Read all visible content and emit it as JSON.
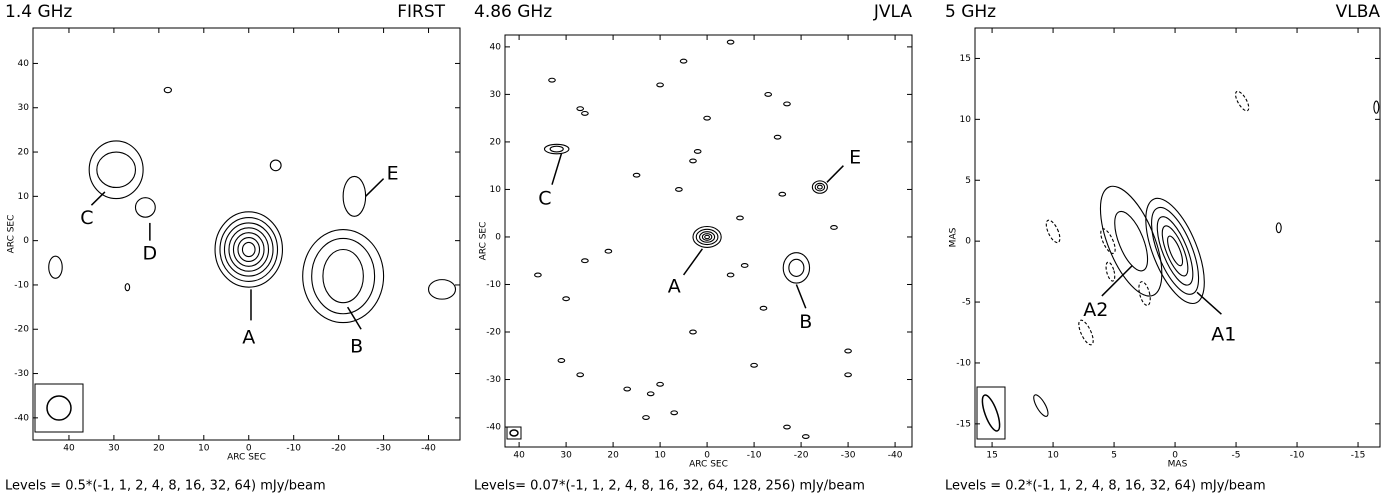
{
  "chart_data": [
    {
      "type": "contour",
      "title": "1.4 GHz",
      "subtitle": "FIRST",
      "xlabel": "ARC SEC",
      "ylabel": "ARC SEC",
      "xlim": [
        48,
        -47
      ],
      "ylim": [
        -45,
        48
      ],
      "xticks": [
        40,
        30,
        20,
        10,
        0,
        -10,
        -20,
        -30,
        -40
      ],
      "yticks": [
        -40,
        -30,
        -20,
        -10,
        0,
        10,
        20,
        30,
        40
      ],
      "annotations": [
        "A",
        "B",
        "C",
        "D",
        "E"
      ],
      "levels": "Levels = 0.5*(-1, 1, 2, 4, 8, 16, 32, 64) mJy/beam"
    },
    {
      "type": "contour",
      "title": "4.86 GHz",
      "subtitle": "JVLA",
      "xlabel": "ARC SEC",
      "ylabel": "ARC SEC",
      "xlim": [
        43,
        -43.6
      ],
      "ylim": [
        -44.2,
        42.5
      ],
      "xticks": [
        40,
        30,
        20,
        10,
        0,
        -10,
        -20,
        -30,
        -40
      ],
      "yticks": [
        -40,
        -30,
        -20,
        -10,
        0,
        10,
        20,
        30,
        40
      ],
      "annotations": [
        "C",
        "A",
        "B",
        "E"
      ],
      "levels": "Levels= 0.07*(-1, 1, 2, 4, 8, 16, 32, 64, 128, 256) mJy/beam"
    },
    {
      "type": "contour",
      "title": "5 GHz",
      "subtitle": "VLBA",
      "xlabel": "MAS",
      "ylabel": "MAS",
      "xlim": [
        16.4,
        -16.8
      ],
      "ylim": [
        -16.9,
        17.5
      ],
      "xticks": [
        15,
        10,
        5,
        0,
        -5,
        -10,
        -15
      ],
      "yticks": [
        -15,
        -10,
        -5,
        0,
        5,
        10,
        15
      ],
      "annotations": [
        "A2",
        "A1"
      ],
      "levels": "Levels = 0.2*(-1, 1, 2, 4, 8, 16, 32, 64) mJy/beam"
    }
  ]
}
